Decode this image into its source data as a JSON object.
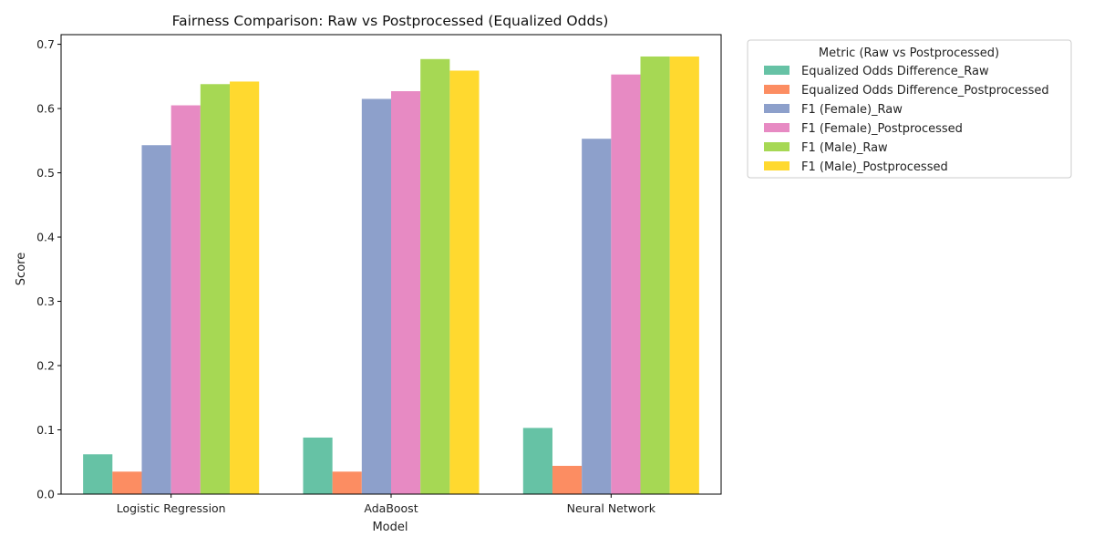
{
  "chart_data": {
    "type": "bar",
    "title": "Fairness Comparison: Raw vs Postprocessed (Equalized Odds)",
    "xlabel": "Model",
    "ylabel": "Score",
    "categories": [
      "Logistic Regression",
      "AdaBoost",
      "Neural Network"
    ],
    "ylim": [
      0,
      0.715
    ],
    "yticks": [
      "0.0",
      "0.1",
      "0.2",
      "0.3",
      "0.4",
      "0.5",
      "0.6",
      "0.7"
    ],
    "grid": false,
    "legend_title": "Metric (Raw vs Postprocessed)",
    "legend_position": "outside-top-right",
    "series": [
      {
        "name": "Equalized Odds Difference_Raw",
        "color": "#66c2a5",
        "values": [
          0.062,
          0.088,
          0.103
        ]
      },
      {
        "name": "Equalized Odds Difference_Postprocessed",
        "color": "#fc8d62",
        "values": [
          0.035,
          0.035,
          0.044
        ]
      },
      {
        "name": "F1 (Female)_Raw",
        "color": "#8da0cb",
        "values": [
          0.543,
          0.615,
          0.553
        ]
      },
      {
        "name": "F1 (Female)_Postprocessed",
        "color": "#e78ac3",
        "values": [
          0.605,
          0.627,
          0.653
        ]
      },
      {
        "name": "F1 (Male)_Raw",
        "color": "#a6d854",
        "values": [
          0.638,
          0.677,
          0.681
        ]
      },
      {
        "name": "F1 (Male)_Postprocessed",
        "color": "#ffd92f",
        "values": [
          0.642,
          0.659,
          0.681
        ]
      }
    ]
  }
}
